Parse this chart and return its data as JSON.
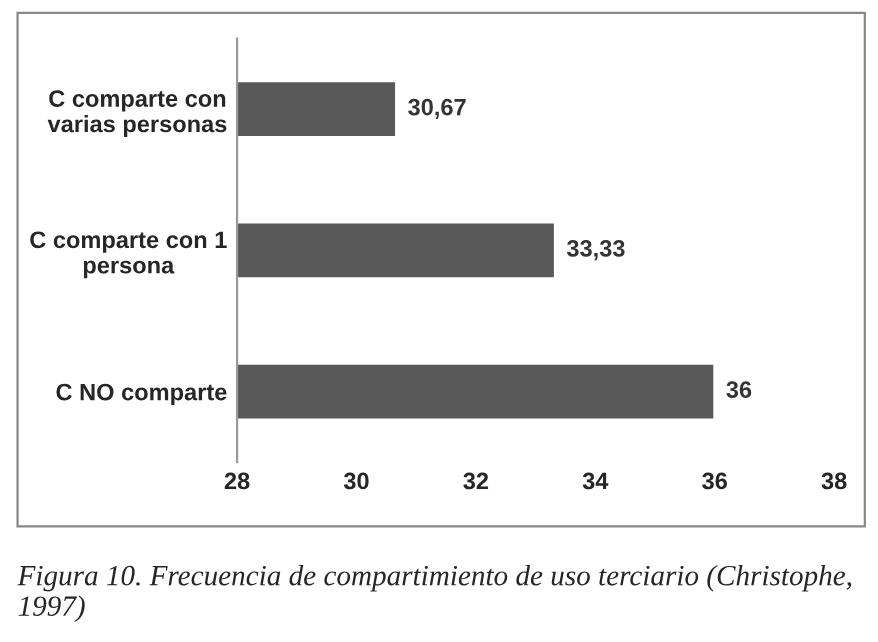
{
  "chart_data": {
    "type": "bar",
    "orientation": "horizontal",
    "categories": [
      "C comparte con\nvarias personas",
      "C comparte con 1\npersona",
      "C NO comparte"
    ],
    "values": [
      30.67,
      33.33,
      36
    ],
    "value_labels": [
      "30,67",
      "33,33",
      "36"
    ],
    "color": "#595959",
    "xlim": [
      28,
      38
    ],
    "xticks": [
      28,
      30,
      32,
      34,
      36,
      38
    ],
    "grid": false,
    "legend": false,
    "annotations": [
      "Figura 10. Frecuencia de compartimiento de uso terciario (Christophe, 1997)"
    ]
  }
}
